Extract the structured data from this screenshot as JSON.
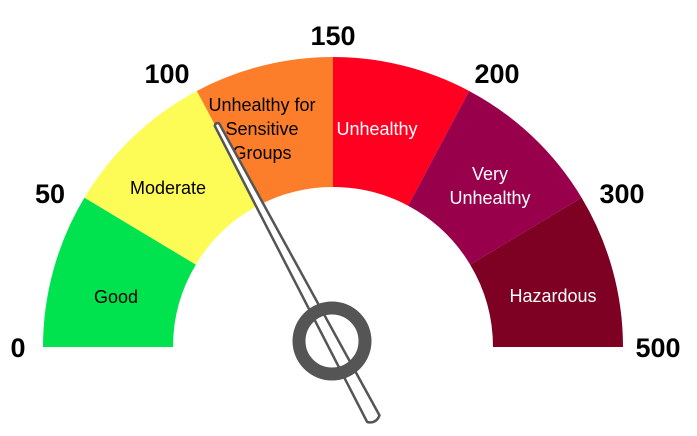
{
  "gauge": {
    "ticks": [
      "0",
      "50",
      "100",
      "150",
      "200",
      "300",
      "500"
    ],
    "segments": [
      {
        "label_lines": [
          "Good"
        ],
        "color": "#00e34f",
        "text_color": "#000000"
      },
      {
        "label_lines": [
          "Moderate"
        ],
        "color": "#fdfb56",
        "text_color": "#000000"
      },
      {
        "label_lines": [
          "Unhealthy for",
          "Sensitive",
          "Groups"
        ],
        "color": "#fd7e2a",
        "text_color": "#000000"
      },
      {
        "label_lines": [
          "Unhealthy"
        ],
        "color": "#ff0020",
        "text_color": "#ffffff"
      },
      {
        "label_lines": [
          "Very",
          "Unhealthy"
        ],
        "color": "#99004c",
        "text_color": "#ffffff"
      },
      {
        "label_lines": [
          "Hazardous"
        ],
        "color": "#7e0023",
        "text_color": "#ffffff"
      }
    ],
    "needle_value": 100
  }
}
